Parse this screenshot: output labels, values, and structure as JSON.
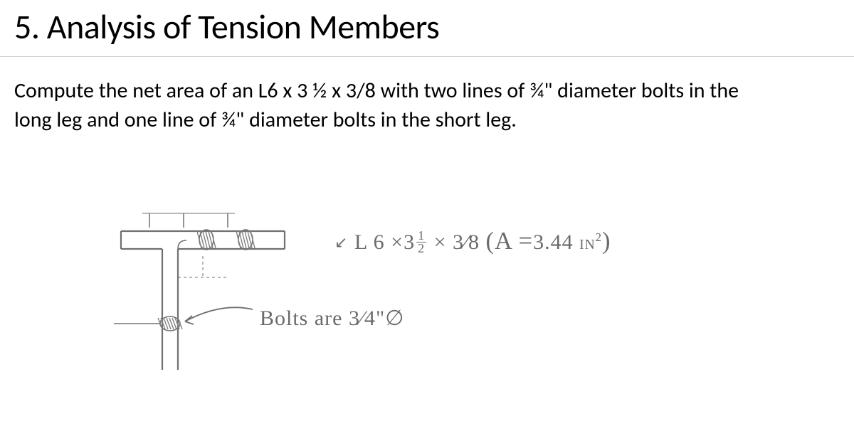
{
  "heading": "5. Analysis of Tension Members",
  "problem": "Compute the net area of an L6 x 3 ½ x 3/8 with two lines of ¾\" diameter bolts in the long leg and one line of ¾\" diameter bolts in the short leg.",
  "sketch": {
    "angle_label_prefix": "L 6 ×3",
    "angle_frac_num": "1",
    "angle_frac_den": "2",
    "angle_label_mid": " × ",
    "angle_slash_frac": "3∕8",
    "area_open": "   (A =",
    "area_value": "3.44",
    "area_unit": "IN",
    "area_close": ")",
    "bolts_prefix": "Bolts are ",
    "bolts_frac": "3∕4",
    "bolts_suffix": "\"∅"
  },
  "drawing": {
    "stroke": "#707070",
    "stroke_width": 2.2,
    "hatch_stroke": "#808080",
    "hatch_width": 1.4
  }
}
